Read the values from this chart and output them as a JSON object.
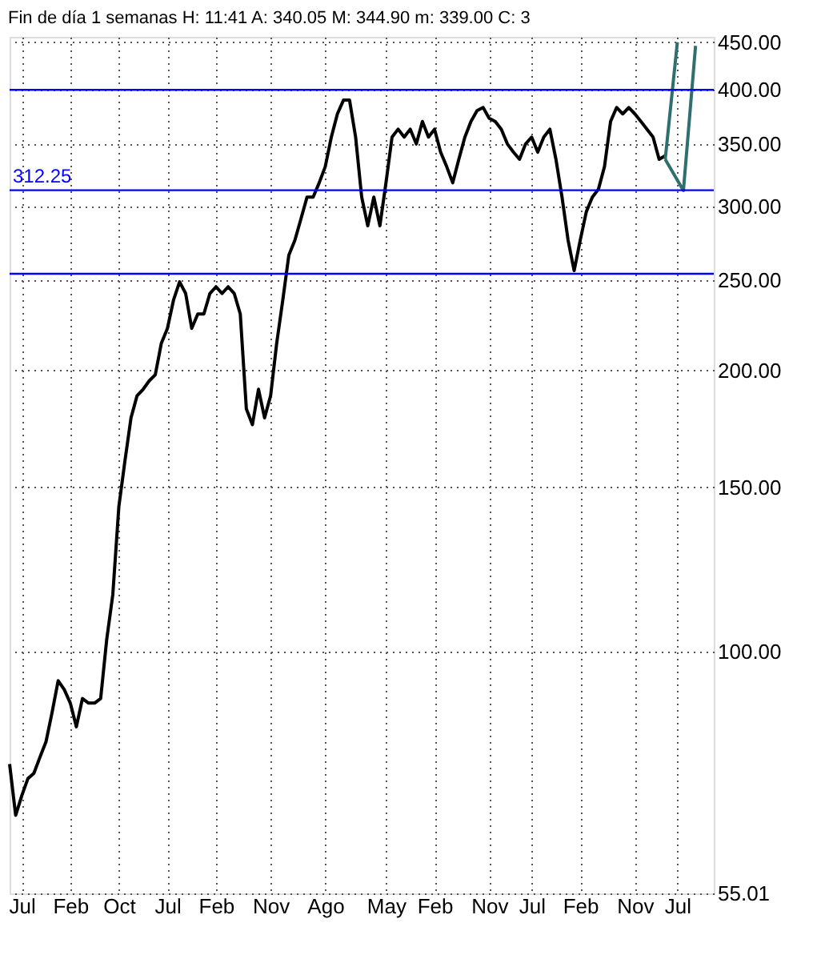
{
  "chart_data": {
    "type": "line",
    "title": "Fin de día 1 semanas  H: 11:41  A: 340.05  M: 344.90  m: 339.00  C: 3",
    "categories": [
      null,
      null,
      "Jul",
      null,
      null,
      null,
      null,
      null,
      null,
      null,
      "Feb",
      null,
      null,
      null,
      null,
      null,
      null,
      null,
      "Oct",
      null,
      null,
      null,
      null,
      null,
      null,
      null,
      "Jul",
      null,
      null,
      null,
      null,
      null,
      null,
      null,
      "Feb",
      null,
      null,
      null,
      null,
      null,
      null,
      null,
      null,
      "Nov",
      null,
      null,
      null,
      null,
      null,
      null,
      null,
      null,
      "Ago",
      null,
      null,
      null,
      null,
      null,
      null,
      null,
      null,
      null,
      "May",
      null,
      null,
      null,
      null,
      null,
      null,
      null,
      "Feb",
      null,
      null,
      null,
      null,
      null,
      null,
      null,
      null,
      "Nov",
      null,
      null,
      null,
      null,
      null,
      null,
      "Jul",
      null,
      null,
      null,
      null,
      null,
      null,
      null,
      "Feb",
      null,
      null,
      null,
      null,
      null,
      null,
      null,
      null,
      "Nov",
      null,
      null,
      null,
      null,
      null,
      null,
      "Jul",
      null,
      null,
      null,
      null,
      null,
      null
    ],
    "series": [
      {
        "color": "#000000",
        "values": [
          75.7,
          66.7,
          70,
          73,
          74,
          77,
          80,
          86,
          93,
          91,
          88,
          83,
          89,
          88,
          88,
          89,
          103,
          115,
          143,
          160,
          178,
          188,
          191,
          195,
          198,
          214,
          222,
          238,
          249,
          242,
          222,
          230,
          230,
          242,
          246,
          242,
          246,
          242,
          230,
          182,
          175,
          191,
          178,
          188,
          214,
          238,
          266,
          276,
          291,
          307,
          307,
          318,
          331,
          356,
          377,
          390,
          390,
          356,
          307,
          286,
          307,
          286,
          318,
          356,
          363,
          356,
          363,
          350,
          370,
          356,
          363,
          343,
          331,
          318,
          337,
          356,
          370,
          380,
          383,
          373,
          370,
          363,
          350,
          343,
          337,
          350,
          356,
          343,
          356,
          363,
          337,
          307,
          276,
          256,
          276,
          296,
          307,
          313,
          331,
          370,
          383,
          377,
          383,
          377,
          370,
          363,
          356,
          337,
          340,
          null,
          null,
          null,
          null,
          null,
          null,
          null,
          null
        ]
      },
      {
        "color": "#2f6f6f",
        "values": [
          null,
          null,
          null,
          null,
          null,
          null,
          null,
          null,
          null,
          null,
          null,
          null,
          null,
          null,
          null,
          null,
          null,
          null,
          null,
          null,
          null,
          null,
          null,
          null,
          null,
          null,
          null,
          null,
          null,
          null,
          null,
          null,
          null,
          null,
          null,
          null,
          null,
          null,
          null,
          null,
          null,
          null,
          null,
          null,
          null,
          null,
          null,
          null,
          null,
          null,
          null,
          null,
          null,
          null,
          null,
          null,
          null,
          null,
          null,
          null,
          null,
          null,
          null,
          null,
          null,
          null,
          null,
          null,
          null,
          null,
          null,
          null,
          null,
          null,
          null,
          null,
          null,
          null,
          null,
          null,
          null,
          null,
          null,
          null,
          null,
          null,
          null,
          null,
          null,
          null,
          null,
          null,
          null,
          null,
          null,
          null,
          null,
          null,
          null,
          null,
          null,
          null,
          null,
          null,
          null,
          null,
          null,
          null,
          337,
          null,
          450,
          null,
          null,
          null,
          null,
          null,
          null
        ]
      },
      {
        "color": "#2f6f6f",
        "values": [
          null,
          null,
          null,
          null,
          null,
          null,
          null,
          null,
          null,
          null,
          null,
          null,
          null,
          null,
          null,
          null,
          null,
          null,
          null,
          null,
          null,
          null,
          null,
          null,
          null,
          null,
          null,
          null,
          null,
          null,
          null,
          null,
          null,
          null,
          null,
          null,
          null,
          null,
          null,
          null,
          null,
          null,
          null,
          null,
          null,
          null,
          null,
          null,
          null,
          null,
          null,
          null,
          null,
          null,
          null,
          null,
          null,
          null,
          null,
          null,
          null,
          null,
          null,
          null,
          null,
          null,
          null,
          null,
          null,
          null,
          null,
          null,
          null,
          null,
          null,
          null,
          null,
          null,
          null,
          null,
          null,
          null,
          null,
          null,
          null,
          null,
          null,
          null,
          null,
          null,
          null,
          null,
          null,
          null,
          null,
          null,
          null,
          null,
          null,
          null,
          null,
          null,
          null,
          null,
          null,
          null,
          null,
          null,
          337,
          null,
          null,
          312,
          null,
          446,
          null,
          null,
          null
        ]
      }
    ],
    "log": "y",
    "ylim": [
      55.01,
      456
    ],
    "yticks": [
      {
        "value": 55.01,
        "label": "55.01"
      },
      {
        "value": 100,
        "label": "100.00"
      },
      {
        "value": 150,
        "label": "150.00"
      },
      {
        "value": 200,
        "label": "200.00"
      },
      {
        "value": 250,
        "label": "250.00"
      },
      {
        "value": 300,
        "label": "300.00"
      },
      {
        "value": 350,
        "label": "350.00"
      },
      {
        "value": 400,
        "label": "400.00"
      },
      {
        "value": 450,
        "label": "450.00"
      }
    ],
    "ref_lines": [
      {
        "axis": "y",
        "value": 312.25,
        "label": "312.25",
        "color": "#0000ff"
      },
      {
        "axis": "y",
        "value": 400,
        "color": "#0000ff"
      },
      {
        "axis": "y",
        "value": 254,
        "color": "#0000ff"
      }
    ],
    "grid": true
  }
}
